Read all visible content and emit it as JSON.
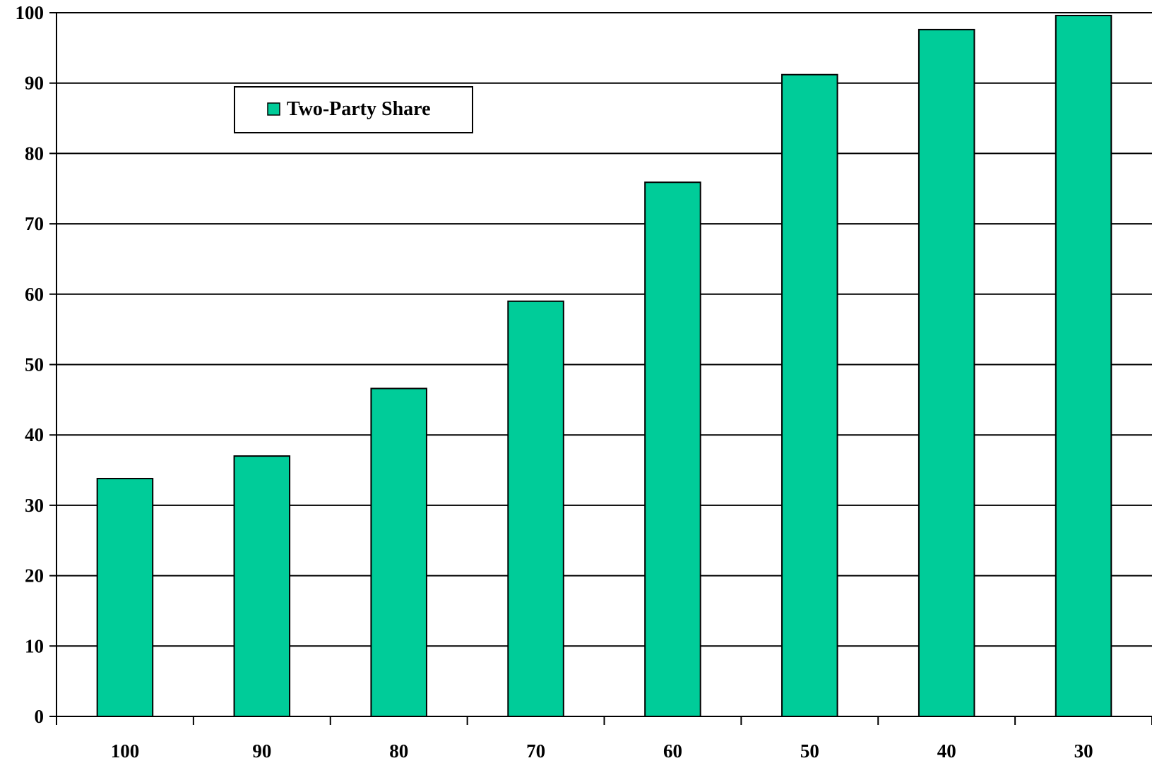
{
  "chart_data": {
    "type": "bar",
    "title": "",
    "xlabel": "",
    "ylabel": "",
    "categories": [
      "100",
      "90",
      "80",
      "70",
      "60",
      "50",
      "40",
      "30"
    ],
    "series": [
      {
        "name": "Two-Party Share",
        "values": [
          33.8,
          37.0,
          46.6,
          59.0,
          75.9,
          91.2,
          97.6,
          99.6
        ]
      }
    ],
    "ylim": [
      0,
      100
    ],
    "yticks": [
      0,
      10,
      20,
      30,
      40,
      50,
      60,
      70,
      80,
      90,
      100
    ],
    "grid": true,
    "legend_position": "top-left",
    "colors": {
      "bar": "#00CC99",
      "outline": "#000000",
      "grid": "#000000"
    }
  }
}
